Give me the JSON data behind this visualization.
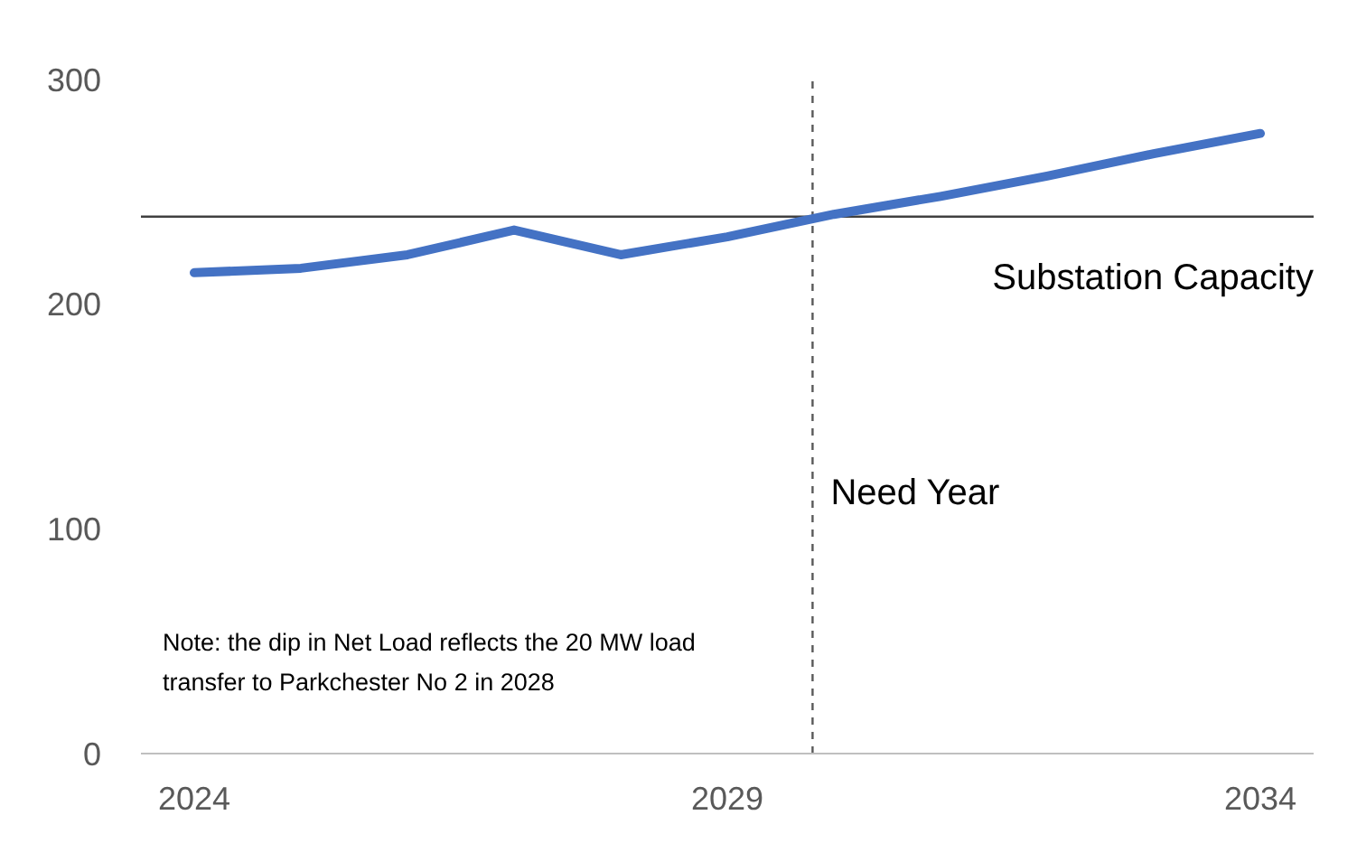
{
  "chart_data": {
    "type": "line",
    "x": [
      2024,
      2025,
      2026,
      2027,
      2028,
      2029,
      2030,
      2031,
      2032,
      2033,
      2034
    ],
    "series": [
      {
        "color": "#4472c4",
        "values": [
          214,
          216,
          222,
          233,
          222,
          230,
          240,
          248,
          257,
          267,
          276
        ]
      }
    ],
    "xlim": [
      2023.5,
      2034.5
    ],
    "xticks": [
      2024,
      2029,
      2034
    ],
    "ylim": [
      0,
      300
    ],
    "yticks": [
      0,
      100,
      200,
      300
    ],
    "grid": false,
    "legend": false,
    "marker": "none",
    "line_style": "solid",
    "ref_lines": [
      {
        "axis": "y",
        "value": 239,
        "label": "Substation Capacity",
        "color": "#404040",
        "line_style": "solid"
      },
      {
        "axis": "x",
        "value": 2029.8,
        "label": "Need Year",
        "color": "#595959",
        "line_style": "dashed"
      }
    ],
    "annotations": [
      "Note: the dip in Net Load reflects the 20 MW load transfer to Parkchester No 2 in 2028"
    ]
  }
}
